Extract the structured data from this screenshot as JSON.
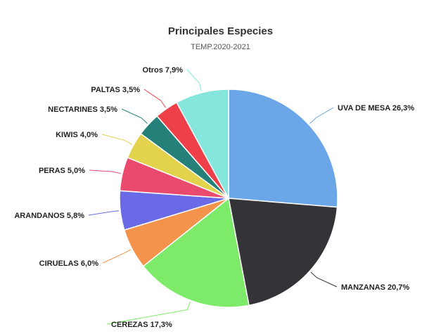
{
  "chart_data": {
    "type": "pie",
    "title": "Principales Especies",
    "subtitle": "TEMP.2020-2021",
    "slices": [
      {
        "label": "UVA DE MESA 26,3%",
        "value": 26.3,
        "color": "#6aa6e8"
      },
      {
        "label": "MANZANAS 20,7%",
        "value": 20.7,
        "color": "#333338"
      },
      {
        "label": "CEREZAS 17,3%",
        "value": 17.3,
        "color": "#7eea6a"
      },
      {
        "label": "CIRUELAS 6,0%",
        "value": 6.0,
        "color": "#f4944c"
      },
      {
        "label": "ARANDANOS 5,8%",
        "value": 5.8,
        "color": "#6a6ae6"
      },
      {
        "label": "PERAS 5,0%",
        "value": 5.0,
        "color": "#ea4a6e"
      },
      {
        "label": "KIWIS 4,0%",
        "value": 4.0,
        "color": "#e2d24c"
      },
      {
        "label": "NECTARINES 3,5%",
        "value": 3.5,
        "color": "#26807a"
      },
      {
        "label": "PALTAS 3,5%",
        "value": 3.5,
        "color": "#ee4048"
      },
      {
        "label": "Otros 7,9%",
        "value": 7.9,
        "color": "#84e6dc"
      }
    ]
  }
}
